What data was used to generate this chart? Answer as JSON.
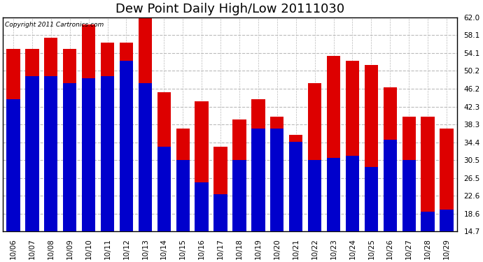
{
  "title": "Dew Point Daily High/Low 20111030",
  "copyright": "Copyright 2011 Cartronics.com",
  "categories": [
    "10/06",
    "10/07",
    "10/08",
    "10/09",
    "10/10",
    "10/11",
    "10/12",
    "10/13",
    "10/14",
    "10/15",
    "10/16",
    "10/17",
    "10/18",
    "10/19",
    "10/20",
    "10/21",
    "10/22",
    "10/23",
    "10/24",
    "10/25",
    "10/26",
    "10/27",
    "10/28",
    "10/29"
  ],
  "high_values": [
    55.0,
    55.0,
    57.5,
    55.0,
    60.5,
    56.5,
    56.5,
    63.0,
    45.5,
    37.5,
    43.5,
    33.5,
    39.5,
    44.0,
    40.0,
    36.0,
    47.5,
    53.5,
    52.5,
    51.5,
    46.5,
    40.0,
    40.0,
    37.5
  ],
  "low_values": [
    44.0,
    49.0,
    49.0,
    47.5,
    48.5,
    49.0,
    52.5,
    47.5,
    33.5,
    30.5,
    25.5,
    23.0,
    30.5,
    37.5,
    37.5,
    34.5,
    30.5,
    31.0,
    31.5,
    29.0,
    35.0,
    30.5,
    19.0,
    19.5
  ],
  "high_color": "#dd0000",
  "low_color": "#0000cc",
  "background_color": "#ffffff",
  "plot_bg_color": "#ffffff",
  "grid_color": "#bbbbbb",
  "ylim_min": 14.7,
  "ylim_max": 62.0,
  "yticks": [
    14.7,
    18.6,
    22.6,
    26.5,
    30.5,
    34.4,
    38.3,
    42.3,
    46.2,
    50.2,
    54.1,
    58.1,
    62.0
  ],
  "title_fontsize": 13,
  "tick_fontsize": 7.5,
  "bar_width": 0.72,
  "figsize": [
    6.9,
    3.75
  ],
  "dpi": 100
}
